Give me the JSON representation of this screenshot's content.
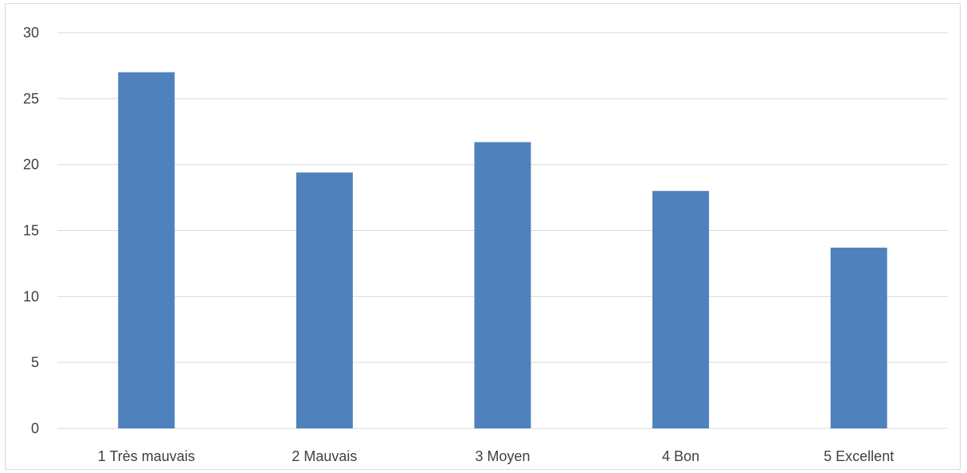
{
  "chart_data": {
    "type": "bar",
    "title": "",
    "xlabel": "",
    "ylabel": "",
    "categories": [
      "1 Très mauvais",
      "2 Mauvais",
      "3 Moyen",
      "4 Bon",
      "5 Excellent"
    ],
    "values": [
      27.0,
      19.4,
      21.7,
      18.0,
      13.7
    ],
    "ylim": [
      0,
      30
    ],
    "yticks": [
      "0",
      "5",
      "10",
      "15",
      "20",
      "25",
      "30"
    ],
    "grid": true,
    "legend": "none",
    "bar_color": "#4f81bd",
    "grid_color": "#d9d9d9"
  }
}
